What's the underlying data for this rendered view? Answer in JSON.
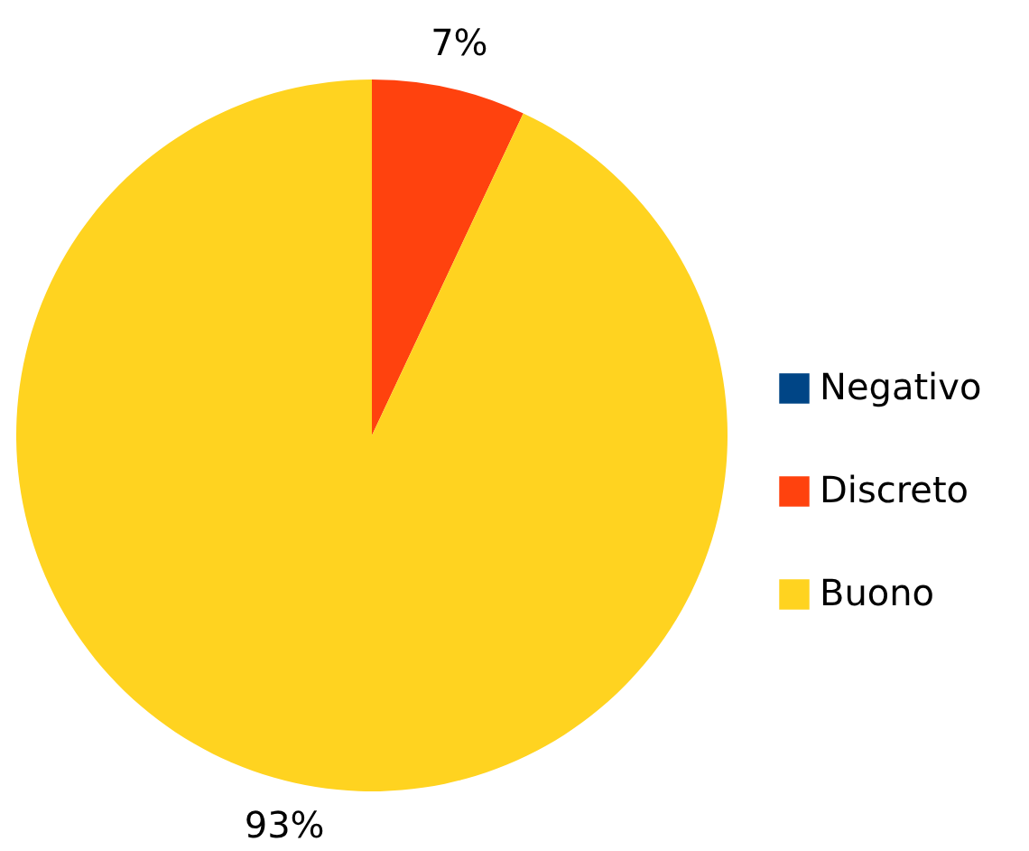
{
  "chart_data": {
    "type": "pie",
    "categories": [
      "Negativo",
      "Discreto",
      "Buono"
    ],
    "values": [
      0,
      7,
      93
    ],
    "colors": [
      "#004586",
      "#ff420e",
      "#ffd320"
    ],
    "value_labels": [
      null,
      "7%",
      "93%"
    ],
    "legend": "right"
  }
}
